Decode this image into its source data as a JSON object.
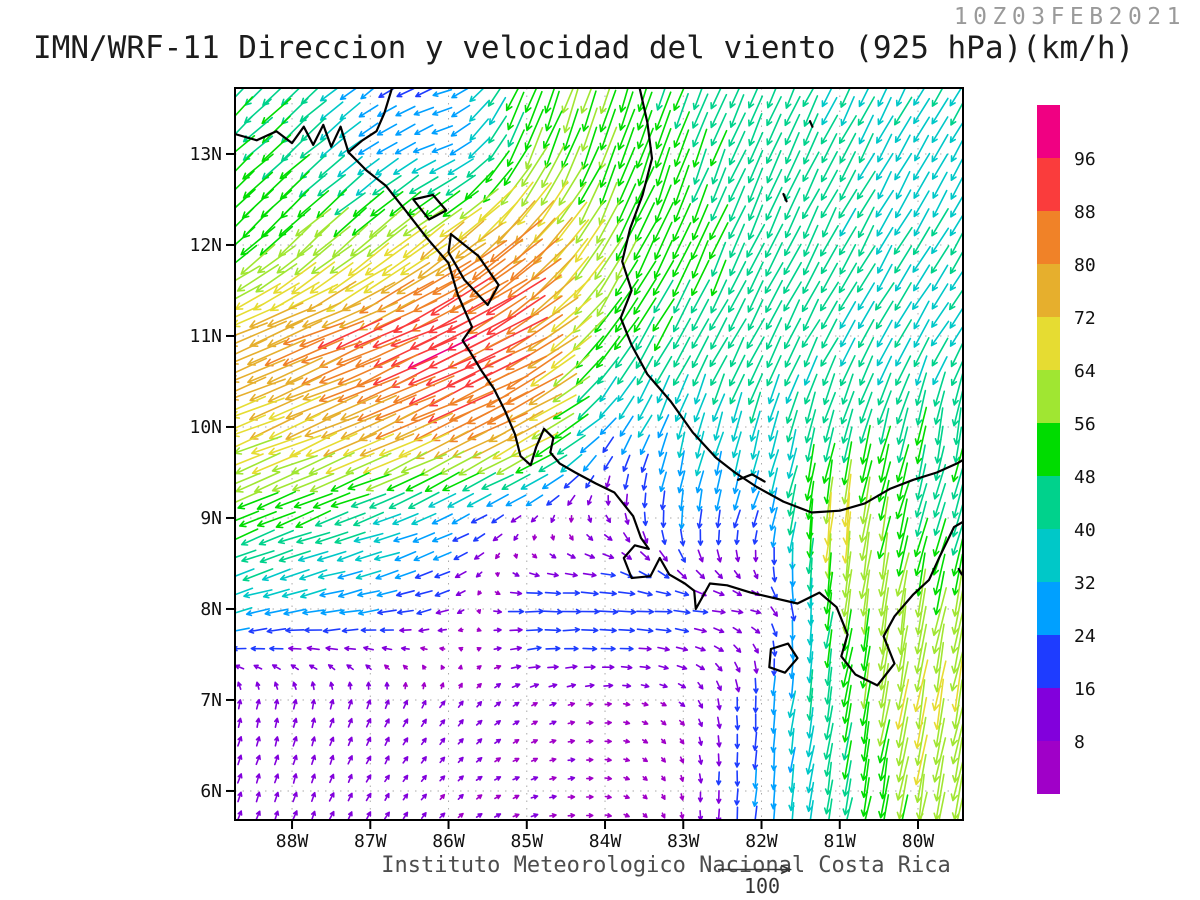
{
  "header": {
    "run_label": "10Z03FEB2021",
    "title": "IMN/WRF-11 Direccion y velocidad del viento (925 hPa)(km/h)"
  },
  "footer": {
    "credit": "Instituto Meteorologico Nacional Costa Rica",
    "reference_arrow_label": "100"
  },
  "chart_data": {
    "type": "vector-field",
    "title": "IMN/WRF-11 Direccion y velocidad del viento (925 hPa)(km/h)",
    "model": "IMN/WRF-11",
    "variable": "Direccion y velocidad del viento",
    "level": "925 hPa",
    "units": "km/h",
    "valid_time_label": "10Z03FEB2021",
    "grid_style": "dotted 1-degree graticule",
    "map_extent": {
      "lon_min": -88.73,
      "lon_max": -79.43,
      "lat_min": 5.68,
      "lat_max": 13.73
    },
    "x_axis": {
      "tick_labels": [
        "88W",
        "87W",
        "86W",
        "85W",
        "84W",
        "83W",
        "82W",
        "81W",
        "80W"
      ],
      "tick_lons": [
        -88,
        -87,
        -86,
        -85,
        -84,
        -83,
        -82,
        -81,
        -80
      ]
    },
    "y_axis": {
      "tick_labels": [
        "13N",
        "12N",
        "11N",
        "10N",
        "9N",
        "8N",
        "7N",
        "6N"
      ],
      "tick_lats": [
        13,
        12,
        11,
        10,
        9,
        8,
        7,
        6
      ]
    },
    "colorbar": {
      "position": "right",
      "levels": [
        8,
        16,
        24,
        32,
        40,
        48,
        56,
        64,
        72,
        80,
        88,
        96
      ],
      "colors": [
        "#a000c8",
        "#8200dc",
        "#1e3cff",
        "#00a0ff",
        "#00c8c8",
        "#00d28c",
        "#00dc00",
        "#a0e632",
        "#e6dc32",
        "#e6af2d",
        "#f08228",
        "#fa3c3c",
        "#f00082"
      ]
    },
    "reference_arrow": {
      "value": 100,
      "label": "100",
      "units": "km/h"
    },
    "wind_grid": {
      "comment": "coarse 1-degree sample of plotted wind field; heading = direction arrow points toward (deg clockwise from N), speed in km/h",
      "lons": [
        -89,
        -88,
        -87,
        -86,
        -85,
        -84,
        -83,
        -82,
        -81,
        -80,
        -79
      ],
      "lats": [
        14,
        13,
        12,
        11,
        10,
        9,
        8,
        7,
        6,
        5
      ],
      "speed_kmh": [
        [
          45,
          45,
          22,
          22,
          55,
          55,
          46,
          42,
          40,
          40,
          40
        ],
        [
          50,
          48,
          30,
          28,
          55,
          55,
          50,
          44,
          41,
          38,
          38
        ],
        [
          54,
          55,
          62,
          75,
          85,
          60,
          52,
          46,
          42,
          40,
          40
        ],
        [
          75,
          80,
          88,
          96,
          90,
          52,
          45,
          42,
          40,
          38,
          38
        ],
        [
          68,
          72,
          78,
          84,
          83,
          28,
          35,
          40,
          42,
          48,
          48
        ],
        [
          55,
          50,
          40,
          28,
          12,
          10,
          25,
          22,
          72,
          45,
          45
        ],
        [
          35,
          30,
          26,
          15,
          24,
          25,
          20,
          12,
          55,
          62,
          60
        ],
        [
          12,
          12,
          12,
          10,
          8,
          8,
          8,
          22,
          50,
          65,
          62
        ],
        [
          12,
          12,
          10,
          8,
          8,
          8,
          8,
          26,
          45,
          60,
          55
        ],
        [
          12,
          12,
          10,
          8,
          8,
          8,
          8,
          26,
          45,
          55,
          50
        ]
      ],
      "heading_deg": [
        [
          225,
          225,
          235,
          255,
          200,
          196,
          200,
          205,
          205,
          207,
          208
        ],
        [
          226,
          228,
          235,
          250,
          205,
          200,
          200,
          205,
          208,
          210,
          210
        ],
        [
          228,
          228,
          230,
          232,
          228,
          210,
          202,
          205,
          208,
          210,
          212
        ],
        [
          248,
          248,
          247,
          246,
          240,
          215,
          210,
          208,
          210,
          212,
          210
        ],
        [
          247,
          247,
          246,
          244,
          242,
          222,
          197,
          195,
          196,
          192,
          190
        ],
        [
          245,
          248,
          250,
          245,
          230,
          150,
          185,
          200,
          186,
          198,
          200
        ],
        [
          255,
          258,
          260,
          252,
          90,
          90,
          95,
          105,
          188,
          190,
          193
        ],
        [
          15,
          10,
          20,
          35,
          60,
          85,
          130,
          185,
          190,
          190,
          192
        ],
        [
          20,
          20,
          30,
          45,
          70,
          95,
          170,
          185,
          190,
          190,
          192
        ],
        [
          20,
          20,
          30,
          45,
          70,
          95,
          170,
          185,
          190,
          190,
          192
        ]
      ]
    }
  },
  "colors": {
    "frame": "#000000",
    "coastline": "#000000",
    "graticule": "#aaaaaa",
    "title_text": "#1c1c1c",
    "run_text": "#9a9a9a",
    "credit_text": "#4d4d4d",
    "axis_text": "#111111"
  }
}
